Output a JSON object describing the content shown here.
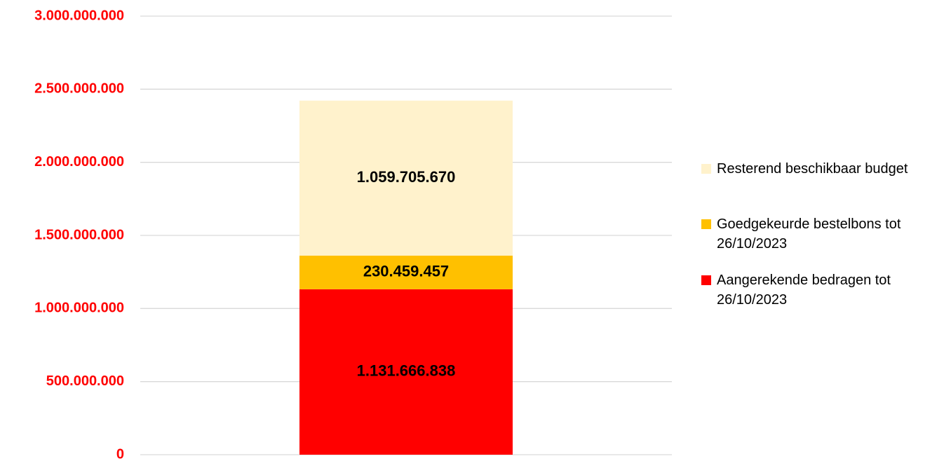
{
  "chart_data": {
    "type": "stacked_bar",
    "categories": [
      null
    ],
    "series": [
      {
        "name": "Aangerekende bedragen tot 26/10/2023",
        "color": "#ff0000",
        "values": [
          1131666838
        ],
        "value_labels": [
          "1.131.666.838"
        ]
      },
      {
        "name": "Goedgekeurde bestelbons tot 26/10/2023",
        "color": "#ffc000",
        "values": [
          230459457
        ],
        "value_labels": [
          "230.459.457"
        ]
      },
      {
        "name": "Resterend beschikbaar budget",
        "color": "#fff2cc",
        "values": [
          1059705670
        ],
        "value_labels": [
          "1.059.705.670"
        ]
      }
    ],
    "ylim": [
      0,
      3000000000
    ],
    "yticks": [
      0,
      {
        "value": 500000000,
        "label": "500.000.000"
      },
      {
        "value": 1000000000,
        "label": "1.000.000.000"
      },
      {
        "value": 1500000000,
        "label": "1.500.000.000"
      },
      {
        "value": 2000000000,
        "label": "2.000.000.000"
      },
      {
        "value": 2500000000,
        "label": "2.500.000.000"
      },
      {
        "value": 3000000000,
        "label": "3.000.000.000"
      }
    ],
    "grid": true,
    "tick_label_color": "#ff0000",
    "legend": "right"
  }
}
